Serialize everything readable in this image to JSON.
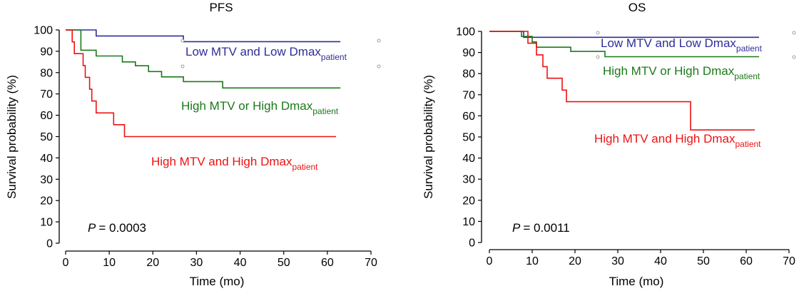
{
  "chart_data": [
    {
      "type": "line",
      "title": "PFS",
      "xlabel": "Time (mo)",
      "ylabel": "Survival probability (%)",
      "xlim": [
        0,
        70
      ],
      "ylim": [
        0,
        100
      ],
      "xticks": [
        0,
        10,
        20,
        30,
        40,
        50,
        60,
        70
      ],
      "yticks": [
        0,
        10,
        20,
        30,
        40,
        50,
        60,
        70,
        80,
        90,
        100
      ],
      "p_label": "P",
      "p_value": "= 0.0003",
      "series": [
        {
          "name_main": "Low MTV and Low Dmax",
          "name_sub": "patient",
          "color": "#2e2e9a",
          "points": [
            [
              0,
              100
            ],
            [
              7,
              100
            ],
            [
              7,
              97.2
            ],
            [
              27,
              97.2
            ],
            [
              27,
              94.5
            ],
            [
              63,
              94.5
            ]
          ]
        },
        {
          "name_main": "High MTV or High Dmax",
          "name_sub": "patient",
          "color": "#1a7a1a",
          "points": [
            [
              0,
              100
            ],
            [
              3.5,
              100
            ],
            [
              3.5,
              90.5
            ],
            [
              7,
              90.5
            ],
            [
              7,
              87.8
            ],
            [
              13,
              87.8
            ],
            [
              13,
              85
            ],
            [
              16,
              85
            ],
            [
              16,
              83.2
            ],
            [
              19,
              83.2
            ],
            [
              19,
              80.5
            ],
            [
              22,
              80.5
            ],
            [
              22,
              78
            ],
            [
              27,
              78
            ],
            [
              27,
              75.8
            ],
            [
              36,
              75.8
            ],
            [
              36,
              72.8
            ],
            [
              63,
              72.8
            ]
          ]
        },
        {
          "name_main": "High MTV and High Dmax",
          "name_sub": "patient",
          "color": "#ee1111",
          "points": [
            [
              0,
              100
            ],
            [
              1.5,
              100
            ],
            [
              1.5,
              94.4
            ],
            [
              2,
              94.4
            ],
            [
              2,
              88.9
            ],
            [
              4,
              88.9
            ],
            [
              4,
              83.3
            ],
            [
              4.5,
              83.3
            ],
            [
              4.5,
              77.8
            ],
            [
              5.5,
              77.8
            ],
            [
              5.5,
              72.2
            ],
            [
              6,
              72.2
            ],
            [
              6,
              66.7
            ],
            [
              7,
              66.7
            ],
            [
              7,
              61.1
            ],
            [
              11,
              61.1
            ],
            [
              11,
              55.6
            ],
            [
              13.5,
              55.6
            ],
            [
              13.5,
              50
            ],
            [
              62,
              50
            ]
          ]
        }
      ]
    },
    {
      "type": "line",
      "title": "OS",
      "xlabel": "Time (mo)",
      "ylabel": "Survival probability (%)",
      "xlim": [
        0,
        70
      ],
      "ylim": [
        0,
        100
      ],
      "xticks": [
        0,
        10,
        20,
        30,
        40,
        50,
        60,
        70
      ],
      "yticks": [
        0,
        10,
        20,
        30,
        40,
        50,
        60,
        70,
        80,
        90,
        100
      ],
      "p_label": "P",
      "p_value": "= 0.0011",
      "series": [
        {
          "name_main": "Low MTV and Low Dmax",
          "name_sub": "patient",
          "color": "#2e2e9a",
          "points": [
            [
              0,
              100
            ],
            [
              8,
              100
            ],
            [
              8,
              97.2
            ],
            [
              63,
              97.2
            ]
          ]
        },
        {
          "name_main": "High MTV or High Dmax",
          "name_sub": "patient",
          "color": "#1a7a1a",
          "points": [
            [
              0,
              100
            ],
            [
              7.5,
              100
            ],
            [
              7.5,
              97.6
            ],
            [
              10,
              97.6
            ],
            [
              10,
              95
            ],
            [
              11,
              95
            ],
            [
              11,
              92.5
            ],
            [
              19,
              92.5
            ],
            [
              19,
              90.5
            ],
            [
              27,
              90.5
            ],
            [
              27,
              88
            ],
            [
              63,
              88
            ]
          ]
        },
        {
          "name_main": "High MTV and High Dmax",
          "name_sub": "patient",
          "color": "#ee1111",
          "points": [
            [
              0,
              100
            ],
            [
              9,
              100
            ],
            [
              9,
              94.4
            ],
            [
              11,
              94.4
            ],
            [
              11,
              88.9
            ],
            [
              12.5,
              88.9
            ],
            [
              12.5,
              83.3
            ],
            [
              13.5,
              83.3
            ],
            [
              13.5,
              77.8
            ],
            [
              17,
              77.8
            ],
            [
              17,
              72.2
            ],
            [
              18,
              72.2
            ],
            [
              18,
              66.7
            ],
            [
              47,
              66.7
            ],
            [
              47,
              53.3
            ],
            [
              62,
              53.3
            ]
          ]
        }
      ]
    }
  ]
}
